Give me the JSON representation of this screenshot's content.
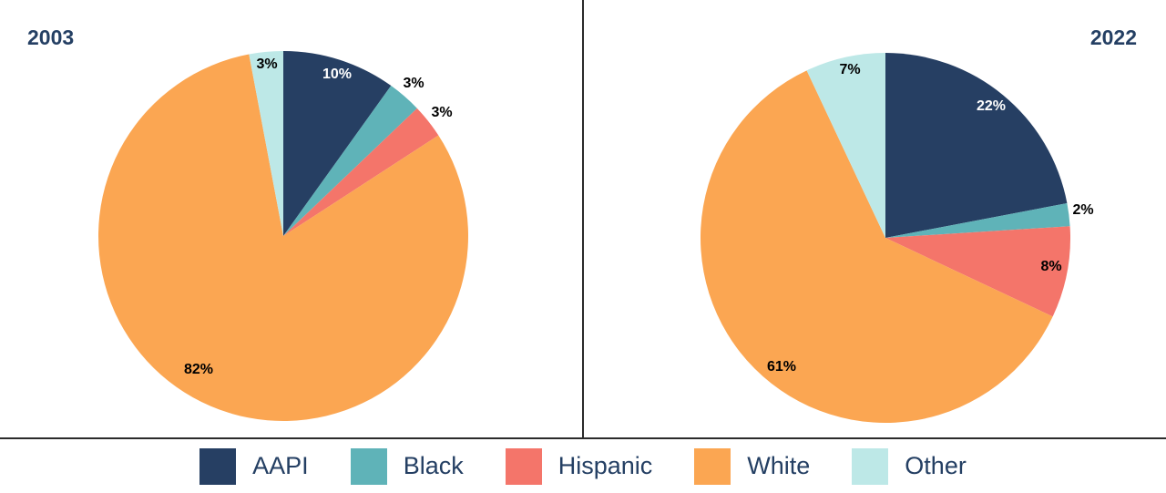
{
  "chart_data": [
    {
      "type": "pie",
      "title": "2003",
      "categories": [
        "AAPI",
        "Black",
        "Hispanic",
        "White",
        "Other"
      ],
      "values": [
        10,
        3,
        3,
        82,
        3
      ],
      "labels": [
        "10%",
        "3%",
        "3%",
        "82%",
        "3%"
      ]
    },
    {
      "type": "pie",
      "title": "2022",
      "categories": [
        "AAPI",
        "Black",
        "Hispanic",
        "White",
        "Other"
      ],
      "values": [
        22,
        2,
        8,
        61,
        7
      ],
      "labels": [
        "22%",
        "2%",
        "8%",
        "61%",
        "7%"
      ]
    }
  ],
  "colors": {
    "AAPI": "#263f63",
    "Black": "#5fb3b8",
    "Hispanic": "#f4756a",
    "White": "#fba652",
    "Other": "#bde8e7"
  },
  "label_colors": {
    "AAPI": "#ffffff",
    "Black": "#000000",
    "Hispanic": "#000000",
    "White": "#000000",
    "Other": "#000000"
  },
  "legend": {
    "items": [
      {
        "label": "AAPI",
        "color": "#263f63"
      },
      {
        "label": "Black",
        "color": "#5fb3b8"
      },
      {
        "label": "Hispanic",
        "color": "#f4756a"
      },
      {
        "label": "White",
        "color": "#fba652"
      },
      {
        "label": "Other",
        "color": "#bde8e7"
      }
    ]
  }
}
